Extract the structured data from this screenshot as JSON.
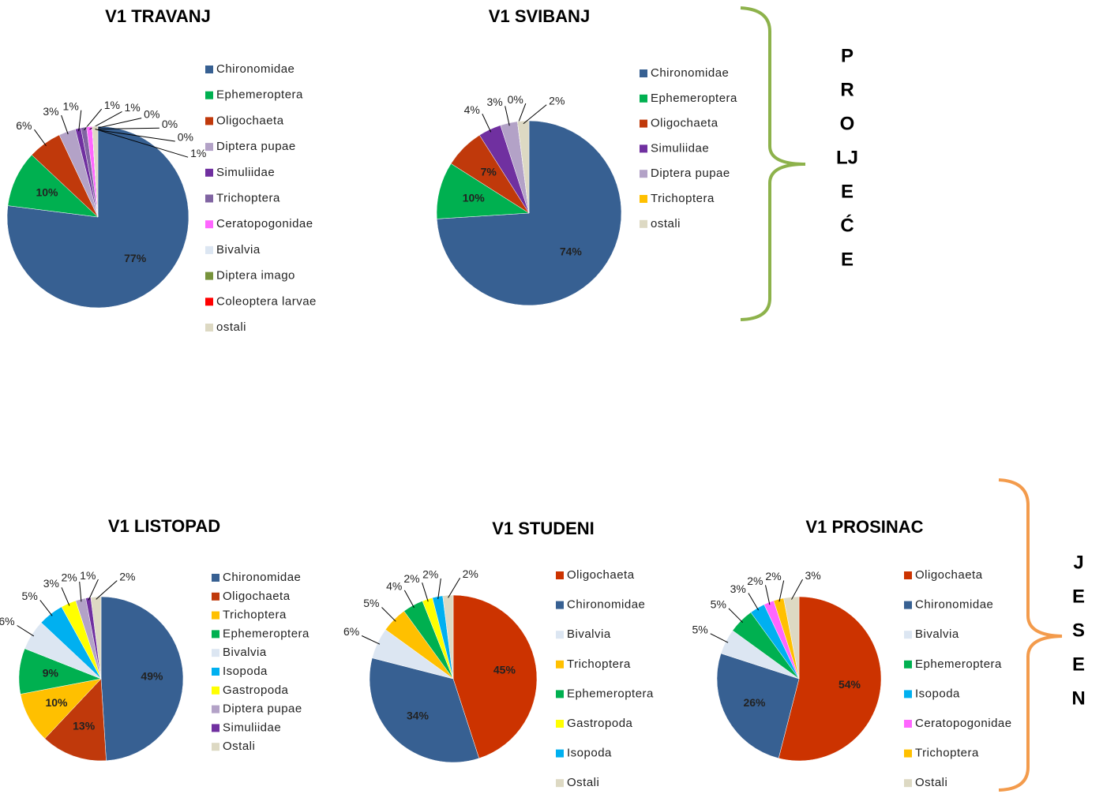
{
  "chart_data": [
    {
      "type": "pie",
      "title": "V1 TRAVANJ",
      "categories": [
        "Chironomidae",
        "Ephemeroptera",
        "Oligochaeta",
        "Diptera pupae",
        "Simuliidae",
        "Trichoptera",
        "Ceratopogonidae",
        "Bivalvia",
        "Diptera imago",
        "Coleoptera larvae",
        "ostali"
      ],
      "values": [
        77,
        10,
        6,
        3,
        1,
        1,
        1,
        0,
        0,
        0,
        1
      ],
      "value_labels": [
        "77%",
        "10%",
        "6%",
        "3%",
        "1%",
        "1%",
        "1%",
        "0%",
        "0%",
        "0%",
        "1%"
      ],
      "colors": [
        "#376092",
        "#00b050",
        "#c0390b",
        "#b3a2c7",
        "#7030a0",
        "#8064a2",
        "#ff66ff",
        "#dce6f2",
        "#77933c",
        "#ff0000",
        "#ddd9c3"
      ]
    },
    {
      "type": "pie",
      "title": "V1 SVIBANJ",
      "categories": [
        "Chironomidae",
        "Ephemeroptera",
        "Oligochaeta",
        "Simuliidae",
        "Diptera pupae",
        "Trichoptera",
        "ostali"
      ],
      "values": [
        74,
        10,
        7,
        4,
        3,
        0,
        2
      ],
      "value_labels": [
        "74%",
        "10%",
        "7%",
        "4%",
        "3%",
        "0%",
        "2%"
      ],
      "colors": [
        "#376092",
        "#00b050",
        "#c0390b",
        "#7030a0",
        "#b3a2c7",
        "#ffc000",
        "#ddd9c3"
      ]
    },
    {
      "type": "pie",
      "title": "V1 LISTOPAD",
      "categories": [
        "Chironomidae",
        "Oligochaeta",
        "Trichoptera",
        "Ephemeroptera",
        "Bivalvia",
        "Isopoda",
        "Gastropoda",
        "Diptera pupae",
        "Simuliidae",
        "Ostali"
      ],
      "values": [
        49,
        13,
        10,
        9,
        6,
        5,
        3,
        2,
        1,
        2
      ],
      "value_labels": [
        "49%",
        "13%",
        "10%",
        "9%",
        "6%",
        "5%",
        "3%",
        "2%",
        "1%",
        "2%"
      ],
      "colors": [
        "#376092",
        "#c0390b",
        "#ffc000",
        "#00b050",
        "#dce6f2",
        "#00b0f0",
        "#ffff00",
        "#b3a2c7",
        "#7030a0",
        "#ddd9c3"
      ]
    },
    {
      "type": "pie",
      "title": "V1 STUDENI",
      "categories": [
        "Oligochaeta",
        "Chironomidae",
        "Bivalvia",
        "Trichoptera",
        "Ephemeroptera",
        "Gastropoda",
        "Isopoda",
        "Ostali"
      ],
      "values": [
        45,
        34,
        6,
        5,
        4,
        2,
        2,
        2
      ],
      "value_labels": [
        "45%",
        "34%",
        "6%",
        "5%",
        "4%",
        "2%",
        "2%",
        "2%"
      ],
      "colors": [
        "#cc3300",
        "#376092",
        "#dce6f2",
        "#ffc000",
        "#00b050",
        "#ffff00",
        "#00b0f0",
        "#ddd9c3"
      ]
    },
    {
      "type": "pie",
      "title": "V1 PROSINAC",
      "categories": [
        "Oligochaeta",
        "Chironomidae",
        "Bivalvia",
        "Ephemeroptera",
        "Isopoda",
        "Ceratopogonidae",
        "Trichoptera",
        "Ostali"
      ],
      "values": [
        54,
        26,
        5,
        5,
        3,
        2,
        2,
        3
      ],
      "value_labels": [
        "54%",
        "26%",
        "5%",
        "5%",
        "3%",
        "2%",
        "2%",
        "3%"
      ],
      "colors": [
        "#cc3300",
        "#376092",
        "#dce6f2",
        "#00b050",
        "#00b0f0",
        "#ff66ff",
        "#ffc000",
        "#ddd9c3"
      ]
    }
  ],
  "braces": [
    {
      "letters": [
        "P",
        "R",
        "O",
        "LJ",
        "E",
        "Ć",
        "E"
      ],
      "color": "#8db24b"
    },
    {
      "letters": [
        "J",
        "E",
        "S",
        "E",
        "N"
      ],
      "color": "#f39b4c"
    }
  ]
}
